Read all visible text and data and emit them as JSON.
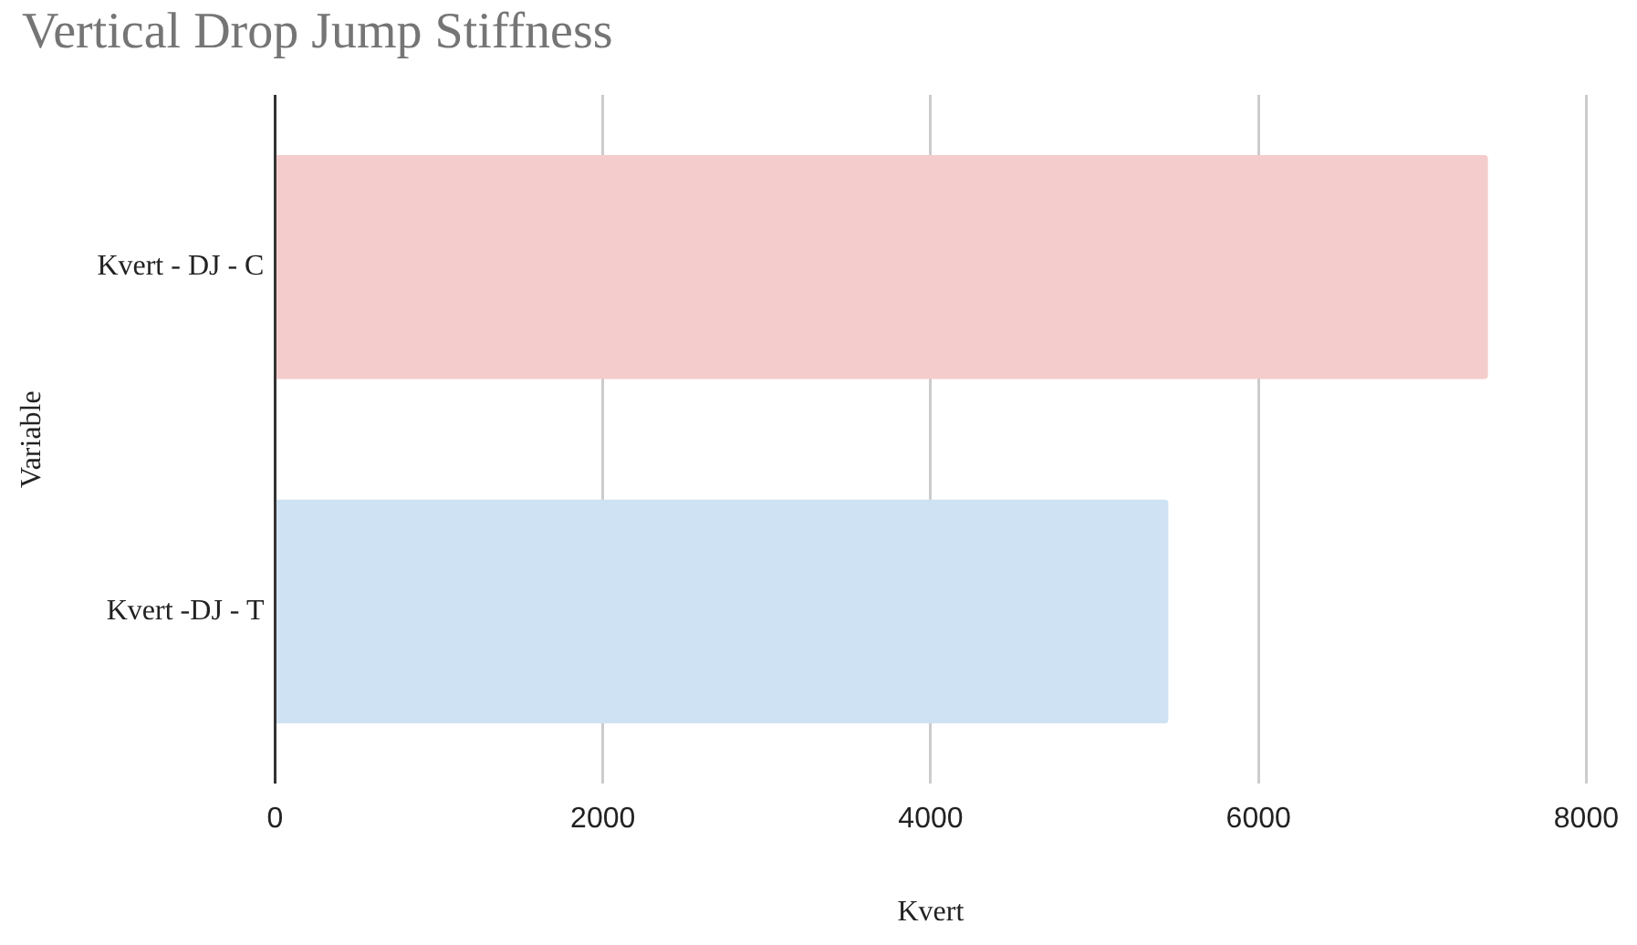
{
  "chart_data": {
    "type": "bar",
    "orientation": "horizontal",
    "title": "Vertical Drop Jump Stiffness",
    "xlabel": "Kvert",
    "ylabel": "Variable",
    "categories": [
      "Kvert - DJ - C",
      "Kvert -DJ - T"
    ],
    "values": [
      7400,
      5450
    ],
    "colors": [
      "#f4cccc",
      "#cfe2f3"
    ],
    "xlim": [
      0,
      8000
    ],
    "xticks": [
      0,
      2000,
      4000,
      6000,
      8000
    ],
    "grid": "x",
    "legend": false
  }
}
